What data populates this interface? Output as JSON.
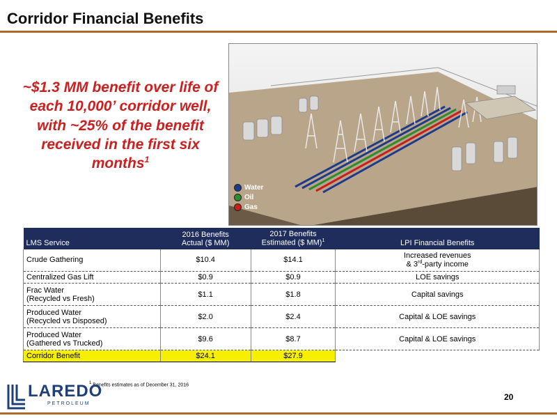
{
  "header": {
    "title": "Corridor Financial Benefits"
  },
  "callout": {
    "text": "~$1.3 MM benefit over life of each 10,000’ corridor well, with ~25% of the benefit received in the first six months",
    "footnote_marker": "1"
  },
  "legend": [
    {
      "label": "Water",
      "color": "#1e3a8a"
    },
    {
      "label": "Oil",
      "color": "#2e8b2e"
    },
    {
      "label": "Gas",
      "color": "#c81e1e"
    }
  ],
  "table": {
    "headers": {
      "service": "LMS Service",
      "y2016_line1": "2016 Benefits",
      "y2016_line2": "Actual ($ MM)",
      "y2017_line1": "2017 Benefits",
      "y2017_line2": "Estimated ($ MM)",
      "y2017_sup": "1",
      "financial": "LPI Financial Benefits"
    },
    "rows": [
      {
        "service_line1": "Crude Gathering",
        "service_line2": "",
        "v2016": "$10.4",
        "v2017": "$14.1",
        "benefit_line1": "Increased revenues",
        "benefit_line2_pre": "& 3",
        "benefit_line2_sup": "rd",
        "benefit_line2_post": "-party income"
      },
      {
        "service_line1": "Centralized Gas Lift",
        "service_line2": "",
        "v2016": "$0.9",
        "v2017": "$0.9",
        "benefit_line1": "LOE savings"
      },
      {
        "service_line1": "Frac Water",
        "service_line2": "(Recycled vs Fresh)",
        "v2016": "$1.1",
        "v2017": "$1.8",
        "benefit_line1": "Capital savings"
      },
      {
        "service_line1": "Produced Water",
        "service_line2": "(Recycled vs Disposed)",
        "v2016": "$2.0",
        "v2017": "$2.4",
        "benefit_line1": "Capital & LOE savings"
      },
      {
        "service_line1": "Produced Water",
        "service_line2": "(Gathered vs Trucked)",
        "v2016": "$9.6",
        "v2017": "$8.7",
        "benefit_line1": "Capital & LOE savings"
      }
    ],
    "total": {
      "label": "Corridor Benefit",
      "v2016": "$24.1",
      "v2017": "$27.9",
      "benefit": ""
    }
  },
  "footnote": {
    "marker": "1",
    "text": "Benefits estimates as of December 31, 2016"
  },
  "logo": {
    "word": "LAREDO",
    "sub": "PETROLEUM"
  },
  "page_number": "20",
  "colors": {
    "accent": "#b06a28",
    "header_bg": "#1f2d5c",
    "callout": "#cc1f1f",
    "total_bg": "#f7ef00"
  }
}
